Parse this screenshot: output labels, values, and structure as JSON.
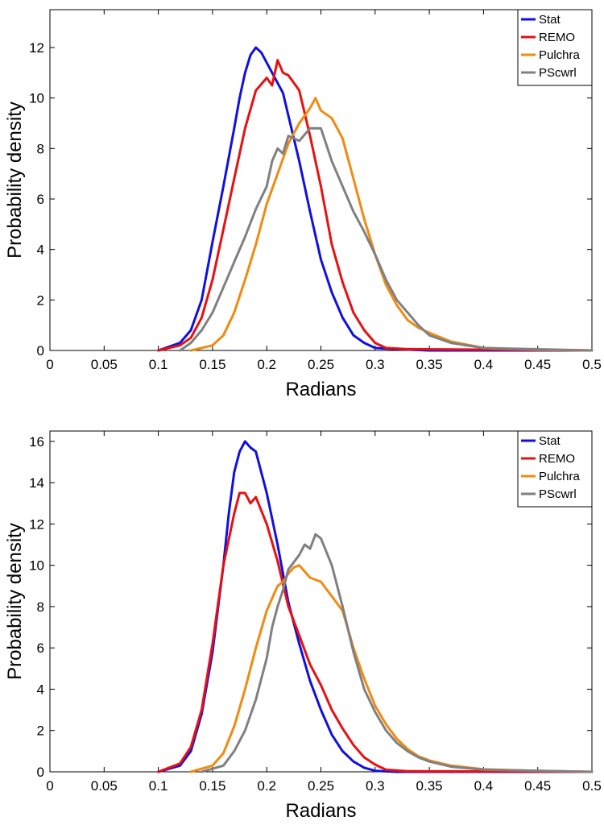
{
  "colors": {
    "Stat": "#1010e0",
    "REMO": "#e81010",
    "Pulchra": "#f08a10",
    "PScwrl": "#808080"
  },
  "chart_data": [
    {
      "type": "line",
      "xlabel": "Radians",
      "ylabel": "Probability density",
      "xlim": [
        0,
        0.5
      ],
      "ylim": [
        0,
        13.5
      ],
      "xticks": [
        0,
        0.05,
        0.1,
        0.15,
        0.2,
        0.25,
        0.3,
        0.35,
        0.4,
        0.45,
        0.5
      ],
      "xtick_labels": [
        "0",
        "0.05",
        "0.1",
        "0.15",
        "0.2",
        "0.25",
        "0.3",
        "0.35",
        "0.4",
        "0.45",
        "0.5"
      ],
      "yticks": [
        0,
        2,
        4,
        6,
        8,
        10,
        12
      ],
      "ytick_labels": [
        "0",
        "2",
        "4",
        "6",
        "8",
        "10",
        "12"
      ],
      "grid": false,
      "legend_position": "top-right",
      "series": [
        {
          "name": "Stat",
          "color": "#1010e0",
          "x": [
            0.1,
            0.12,
            0.13,
            0.14,
            0.15,
            0.16,
            0.17,
            0.175,
            0.18,
            0.185,
            0.19,
            0.195,
            0.2,
            0.205,
            0.21,
            0.215,
            0.22,
            0.23,
            0.24,
            0.25,
            0.26,
            0.27,
            0.28,
            0.29,
            0.3,
            0.32,
            0.35,
            0.5
          ],
          "y": [
            0,
            0.3,
            0.8,
            2.0,
            4.3,
            6.5,
            8.8,
            10.0,
            11.0,
            11.7,
            12.0,
            11.8,
            11.4,
            11.0,
            10.6,
            10.2,
            9.3,
            7.5,
            5.5,
            3.6,
            2.3,
            1.3,
            0.6,
            0.3,
            0.1,
            0.05,
            0,
            0
          ]
        },
        {
          "name": "REMO",
          "color": "#e81010",
          "x": [
            0.1,
            0.12,
            0.13,
            0.14,
            0.15,
            0.16,
            0.17,
            0.18,
            0.19,
            0.2,
            0.205,
            0.21,
            0.215,
            0.22,
            0.225,
            0.23,
            0.24,
            0.25,
            0.26,
            0.27,
            0.28,
            0.29,
            0.3,
            0.31,
            0.33,
            0.5
          ],
          "y": [
            0,
            0.2,
            0.5,
            1.3,
            2.8,
            4.8,
            6.8,
            8.8,
            10.3,
            10.8,
            10.5,
            11.5,
            11.0,
            10.9,
            10.6,
            10.3,
            8.5,
            6.5,
            4.2,
            2.7,
            1.5,
            0.8,
            0.3,
            0.1,
            0.05,
            0
          ]
        },
        {
          "name": "Pulchra",
          "color": "#f08a10",
          "x": [
            0.13,
            0.15,
            0.16,
            0.17,
            0.18,
            0.19,
            0.2,
            0.21,
            0.22,
            0.23,
            0.24,
            0.245,
            0.25,
            0.26,
            0.27,
            0.28,
            0.29,
            0.3,
            0.31,
            0.32,
            0.33,
            0.34,
            0.35,
            0.37,
            0.4,
            0.45,
            0.5
          ],
          "y": [
            0,
            0.2,
            0.6,
            1.5,
            2.8,
            4.2,
            5.8,
            7.0,
            8.2,
            9.0,
            9.6,
            10.0,
            9.5,
            9.2,
            8.4,
            6.8,
            5.2,
            3.8,
            2.6,
            1.8,
            1.2,
            0.9,
            0.7,
            0.35,
            0.1,
            0.03,
            0
          ]
        },
        {
          "name": "PScwrl",
          "color": "#808080",
          "x": [
            0.12,
            0.13,
            0.14,
            0.15,
            0.16,
            0.17,
            0.18,
            0.19,
            0.2,
            0.205,
            0.21,
            0.215,
            0.22,
            0.23,
            0.24,
            0.25,
            0.26,
            0.27,
            0.28,
            0.29,
            0.3,
            0.31,
            0.32,
            0.33,
            0.34,
            0.35,
            0.37,
            0.4,
            0.5
          ],
          "y": [
            0,
            0.3,
            0.8,
            1.5,
            2.5,
            3.5,
            4.5,
            5.6,
            6.5,
            7.5,
            8.0,
            7.8,
            8.5,
            8.3,
            8.8,
            8.8,
            7.5,
            6.5,
            5.5,
            4.7,
            3.8,
            2.8,
            2.0,
            1.5,
            1.0,
            0.6,
            0.3,
            0.1,
            0
          ]
        }
      ]
    },
    {
      "type": "line",
      "xlabel": "Radians",
      "ylabel": "Probability density",
      "xlim": [
        0,
        0.5
      ],
      "ylim": [
        0,
        16.5
      ],
      "xticks": [
        0,
        0.05,
        0.1,
        0.15,
        0.2,
        0.25,
        0.3,
        0.35,
        0.4,
        0.45,
        0.5
      ],
      "xtick_labels": [
        "0",
        "0.05",
        "0.1",
        "0.15",
        "0.2",
        "0.25",
        "0.3",
        "0.35",
        "0.4",
        "0.45",
        "0.5"
      ],
      "yticks": [
        0,
        2,
        4,
        6,
        8,
        10,
        12,
        14,
        16
      ],
      "ytick_labels": [
        "0",
        "2",
        "4",
        "6",
        "8",
        "10",
        "12",
        "14",
        "16"
      ],
      "grid": false,
      "legend_position": "top-right",
      "series": [
        {
          "name": "Stat",
          "color": "#1010e0",
          "x": [
            0.1,
            0.12,
            0.13,
            0.14,
            0.15,
            0.16,
            0.165,
            0.17,
            0.175,
            0.18,
            0.185,
            0.19,
            0.2,
            0.21,
            0.22,
            0.23,
            0.24,
            0.25,
            0.26,
            0.27,
            0.28,
            0.29,
            0.3,
            0.32,
            0.5
          ],
          "y": [
            0,
            0.3,
            1.0,
            2.8,
            5.8,
            10.0,
            12.5,
            14.5,
            15.5,
            16.0,
            15.7,
            15.5,
            13.5,
            11.0,
            8.2,
            6.2,
            4.4,
            3.0,
            1.8,
            1.0,
            0.5,
            0.2,
            0.05,
            0,
            0
          ]
        },
        {
          "name": "REMO",
          "color": "#e81010",
          "x": [
            0.1,
            0.12,
            0.13,
            0.14,
            0.15,
            0.16,
            0.17,
            0.175,
            0.18,
            0.185,
            0.19,
            0.2,
            0.21,
            0.22,
            0.23,
            0.24,
            0.25,
            0.26,
            0.27,
            0.28,
            0.29,
            0.3,
            0.31,
            0.33,
            0.5
          ],
          "y": [
            0,
            0.4,
            1.2,
            3.0,
            6.2,
            10.0,
            12.5,
            13.5,
            13.5,
            13.0,
            13.3,
            12.0,
            10.2,
            8.0,
            6.6,
            5.2,
            4.2,
            3.0,
            2.1,
            1.3,
            0.7,
            0.35,
            0.1,
            0.03,
            0
          ]
        },
        {
          "name": "Pulchra",
          "color": "#f08a10",
          "x": [
            0.13,
            0.15,
            0.16,
            0.17,
            0.18,
            0.19,
            0.2,
            0.21,
            0.215,
            0.22,
            0.225,
            0.23,
            0.24,
            0.25,
            0.26,
            0.27,
            0.28,
            0.29,
            0.3,
            0.31,
            0.32,
            0.33,
            0.34,
            0.35,
            0.37,
            0.4,
            0.45,
            0.5
          ],
          "y": [
            0,
            0.3,
            0.9,
            2.2,
            4.0,
            6.0,
            7.8,
            9.0,
            9.2,
            9.6,
            9.9,
            10.0,
            9.4,
            9.2,
            8.5,
            7.8,
            6.0,
            4.5,
            3.2,
            2.3,
            1.6,
            1.1,
            0.75,
            0.55,
            0.3,
            0.12,
            0.05,
            0
          ]
        },
        {
          "name": "PScwrl",
          "color": "#808080",
          "x": [
            0.14,
            0.16,
            0.17,
            0.18,
            0.19,
            0.2,
            0.205,
            0.21,
            0.215,
            0.22,
            0.23,
            0.235,
            0.24,
            0.245,
            0.25,
            0.26,
            0.27,
            0.28,
            0.29,
            0.3,
            0.31,
            0.32,
            0.33,
            0.34,
            0.35,
            0.37,
            0.4,
            0.5
          ],
          "y": [
            0,
            0.3,
            1.0,
            2.0,
            3.5,
            5.5,
            7.0,
            8.0,
            8.8,
            9.8,
            10.5,
            11.0,
            10.8,
            11.5,
            11.3,
            10.0,
            8.0,
            5.8,
            4.0,
            2.9,
            2.0,
            1.4,
            1.0,
            0.7,
            0.5,
            0.25,
            0.1,
            0
          ]
        }
      ]
    }
  ]
}
